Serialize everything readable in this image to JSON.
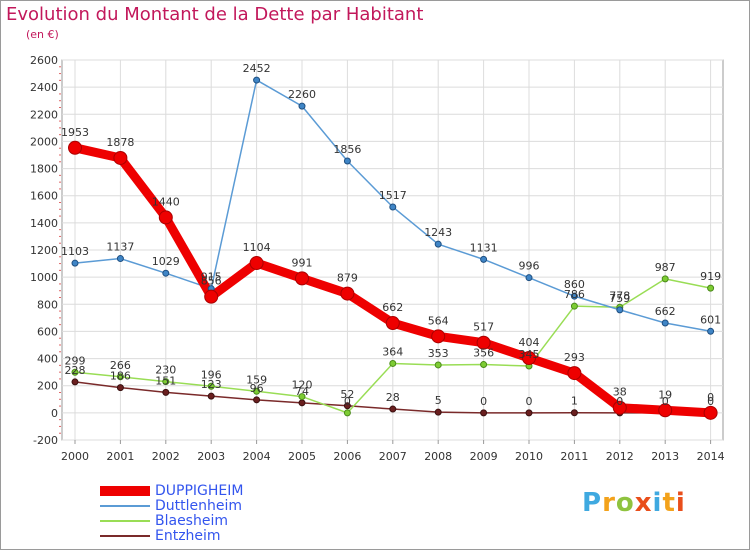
{
  "chart_data": {
    "type": "line",
    "title": "Evolution du Montant de la Dette par Habitant",
    "subtitle": "(en €)",
    "xlabel": "",
    "ylabel": "",
    "x": [
      "2000",
      "2001",
      "2002",
      "2003",
      "2004",
      "2005",
      "2006",
      "2007",
      "2008",
      "2009",
      "2010",
      "2011",
      "2012",
      "2013",
      "2014"
    ],
    "ylim": [
      -200,
      2600
    ],
    "yticks": [
      -200,
      0,
      200,
      400,
      600,
      800,
      1000,
      1200,
      1400,
      1600,
      1800,
      2000,
      2200,
      2400,
      2600
    ],
    "grid": true,
    "legend_position": "bottom-left",
    "series": [
      {
        "name": "Entzheim",
        "color": "#7a2a2a",
        "values": [
          228,
          186,
          151,
          123,
          96,
          74,
          52,
          28,
          5,
          0,
          0,
          1,
          0,
          0,
          0
        ]
      },
      {
        "name": "Blaesheim",
        "color": "#99dd55",
        "values": [
          299,
          266,
          230,
          196,
          159,
          120,
          0,
          364,
          353,
          356,
          345,
          786,
          778,
          987,
          919
        ]
      },
      {
        "name": "Duttlenheim",
        "color": "#5b9bd5",
        "values": [
          1103,
          1137,
          1029,
          915,
          2452,
          2260,
          1856,
          1517,
          1243,
          1131,
          996,
          860,
          759,
          662,
          601
        ]
      },
      {
        "name": "DUPPIGHEIM",
        "color": "#ee0000",
        "values": [
          1953,
          1878,
          1440,
          856,
          1104,
          991,
          879,
          662,
          564,
          517,
          404,
          293,
          38,
          19,
          0
        ]
      }
    ]
  },
  "legend": {
    "items": [
      {
        "label": "DUPPIGHEIM",
        "color": "#ee0000",
        "text_color": "#3355ee"
      },
      {
        "label": "Duttlenheim",
        "color": "#5b9bd5",
        "text_color": "#3355ee"
      },
      {
        "label": "Blaesheim",
        "color": "#99dd55",
        "text_color": "#3355ee"
      },
      {
        "label": "Entzheim",
        "color": "#7a2a2a",
        "text_color": "#3355ee"
      }
    ]
  },
  "logo": {
    "letters": [
      "P",
      "r",
      "o",
      "x",
      "i",
      "t",
      "i"
    ]
  }
}
